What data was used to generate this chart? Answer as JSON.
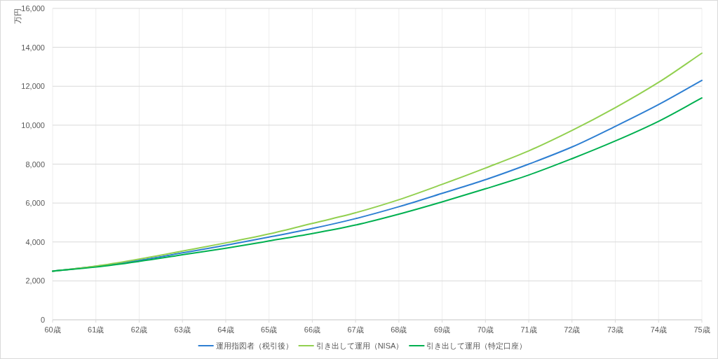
{
  "chart_data": {
    "type": "line",
    "ylabel": "万円",
    "x": [
      60,
      61,
      62,
      63,
      64,
      65,
      66,
      67,
      68,
      69,
      70,
      71,
      72,
      73,
      74,
      75
    ],
    "xlim": [
      60,
      75
    ],
    "xticks": [
      {
        "value": 60,
        "label": "60歳"
      },
      {
        "value": 61,
        "label": "61歳"
      },
      {
        "value": 62,
        "label": "62歳"
      },
      {
        "value": 63,
        "label": "63歳"
      },
      {
        "value": 64,
        "label": "64歳"
      },
      {
        "value": 65,
        "label": "65歳"
      },
      {
        "value": 66,
        "label": "66歳"
      },
      {
        "value": 67,
        "label": "67歳"
      },
      {
        "value": 68,
        "label": "68歳"
      },
      {
        "value": 69,
        "label": "69歳"
      },
      {
        "value": 70,
        "label": "70歳"
      },
      {
        "value": 71,
        "label": "71歳"
      },
      {
        "value": 72,
        "label": "72歳"
      },
      {
        "value": 73,
        "label": "73歳"
      },
      {
        "value": 74,
        "label": "74歳"
      },
      {
        "value": 75,
        "label": "75歳"
      }
    ],
    "ylim": [
      0,
      16000
    ],
    "yticks": [
      0,
      {
        "value": 2000,
        "label": "2,000"
      },
      {
        "value": 4000,
        "label": "4,000"
      },
      {
        "value": 6000,
        "label": "6,000"
      },
      {
        "value": 8000,
        "label": "8,000"
      },
      {
        "value": 10000,
        "label": "10,000"
      },
      {
        "value": 12000,
        "label": "12,000"
      },
      {
        "value": 14000,
        "label": "14,000"
      },
      {
        "value": 16000,
        "label": "16,000"
      }
    ],
    "grid": true,
    "legend": "bottom",
    "line_style": "solid",
    "series": [
      {
        "name": "運用指図者（税引後）",
        "color": "#2e7fd2",
        "values": [
          2500,
          2750,
          3060,
          3440,
          3830,
          4250,
          4690,
          5200,
          5810,
          6500,
          7200,
          8000,
          8880,
          9940,
          11060,
          12300
        ]
      },
      {
        "name": "引き出して運用（NISA）",
        "color": "#92d050",
        "values": [
          2500,
          2760,
          3120,
          3530,
          3950,
          4410,
          4950,
          5500,
          6170,
          6960,
          7800,
          8680,
          9730,
          10900,
          12200,
          13700
        ]
      },
      {
        "name": "引き出して運用（特定口座）",
        "color": "#00b050",
        "values": [
          2500,
          2710,
          3000,
          3340,
          3680,
          4050,
          4430,
          4870,
          5430,
          6060,
          6730,
          7440,
          8280,
          9190,
          10200,
          11400
        ]
      }
    ]
  }
}
